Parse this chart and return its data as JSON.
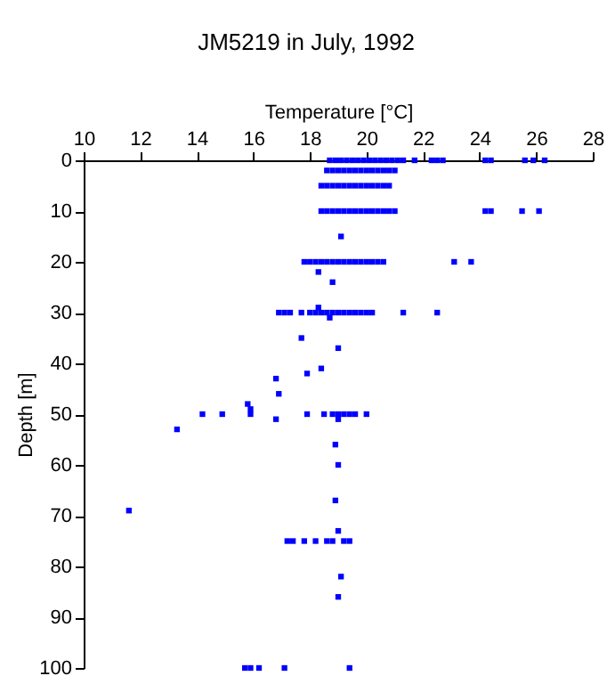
{
  "chart_data": {
    "type": "scatter",
    "title": "JM5219 in July, 1992",
    "xlabel": "Temperature [°C]",
    "ylabel": "Depth [m]",
    "xlim": [
      10,
      28
    ],
    "xticks": [
      10,
      12,
      14,
      16,
      18,
      20,
      22,
      24,
      26,
      28
    ],
    "ylim": [
      100,
      0
    ],
    "yticks": [
      0,
      10,
      20,
      30,
      40,
      50,
      60,
      70,
      80,
      90,
      100
    ],
    "grid": false,
    "marker": "square",
    "series": [
      {
        "color": "#0000ff",
        "x": [
          18.7,
          18.9,
          19.1,
          19.3,
          19.5,
          19.7,
          19.9,
          20.1,
          20.3,
          20.5,
          20.7,
          20.9,
          21.1,
          21.3,
          21.7,
          22.3,
          22.5,
          22.7,
          24.2,
          24.4,
          25.6,
          25.9,
          26.3,
          18.6,
          18.8,
          19.0,
          19.2,
          19.4,
          19.6,
          19.8,
          20.0,
          20.2,
          20.4,
          20.6,
          20.8,
          21.0,
          18.4,
          18.6,
          18.8,
          19.0,
          19.2,
          19.4,
          19.6,
          19.8,
          20.0,
          20.2,
          20.4,
          20.6,
          20.8,
          18.4,
          18.6,
          18.8,
          19.0,
          19.2,
          19.4,
          19.6,
          19.8,
          20.0,
          20.2,
          20.4,
          20.6,
          20.8,
          21.0,
          24.2,
          24.4,
          25.5,
          26.1,
          19.1,
          17.8,
          18.0,
          18.2,
          18.4,
          18.6,
          18.8,
          19.0,
          19.2,
          19.4,
          19.6,
          19.8,
          20.0,
          20.2,
          20.4,
          20.6,
          23.1,
          23.7,
          18.3,
          18.8,
          18.3,
          16.9,
          17.1,
          17.3,
          17.7,
          18.0,
          18.2,
          18.4,
          18.6,
          18.8,
          19.0,
          19.2,
          19.4,
          19.6,
          19.8,
          20.0,
          20.2,
          21.3,
          22.5,
          18.7,
          17.7,
          19.0,
          18.4,
          17.9,
          16.8,
          16.9,
          15.8,
          15.9,
          14.2,
          14.9,
          15.9,
          17.9,
          18.5,
          18.8,
          19.0,
          19.2,
          19.4,
          19.6,
          20.0,
          16.8,
          19.0,
          13.3,
          18.9,
          19.0,
          18.9,
          11.6,
          19.0,
          17.2,
          17.4,
          17.8,
          18.2,
          18.6,
          18.8,
          19.2,
          19.4,
          19.1,
          19.0,
          15.7,
          15.9,
          16.2,
          17.1,
          19.4
        ],
        "values": [
          0,
          0,
          0,
          0,
          0,
          0,
          0,
          0,
          0,
          0,
          0,
          0,
          0,
          0,
          0,
          0,
          0,
          0,
          0,
          0,
          0,
          0,
          0,
          2,
          2,
          2,
          2,
          2,
          2,
          2,
          2,
          2,
          2,
          2,
          2,
          2,
          5,
          5,
          5,
          5,
          5,
          5,
          5,
          5,
          5,
          5,
          5,
          5,
          5,
          10,
          10,
          10,
          10,
          10,
          10,
          10,
          10,
          10,
          10,
          10,
          10,
          10,
          10,
          10,
          10,
          10,
          10,
          15,
          20,
          20,
          20,
          20,
          20,
          20,
          20,
          20,
          20,
          20,
          20,
          20,
          20,
          20,
          20,
          20,
          20,
          22,
          24,
          29,
          30,
          30,
          30,
          30,
          30,
          30,
          30,
          30,
          30,
          30,
          30,
          30,
          30,
          30,
          30,
          30,
          30,
          30,
          31,
          35,
          37,
          41,
          42,
          43,
          46,
          48,
          49,
          50,
          50,
          50,
          50,
          50,
          50,
          50,
          50,
          50,
          50,
          50,
          51,
          51,
          53,
          56,
          60,
          67,
          69,
          73,
          75,
          75,
          75,
          75,
          75,
          75,
          75,
          75,
          82,
          86,
          100,
          100,
          100,
          100,
          100
        ]
      }
    ]
  }
}
